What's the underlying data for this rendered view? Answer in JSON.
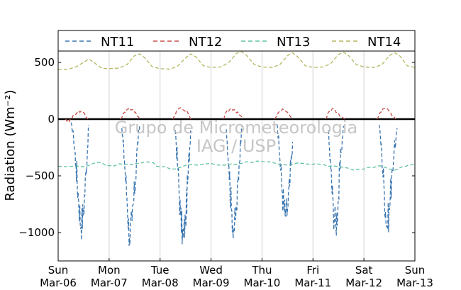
{
  "chart_data": {
    "type": "line",
    "title": "",
    "xlabel": "",
    "ylabel": "Radiation (Wm⁻²)",
    "ylim": [
      -1250,
      600
    ],
    "xlim": [
      0,
      7
    ],
    "yticks": [
      500,
      0,
      -500,
      -1000
    ],
    "ytick_labels": [
      "500",
      "0",
      "−500",
      "−1000"
    ],
    "xticks": [
      {
        "x": 0,
        "day": "Sun",
        "date": "Mar-06"
      },
      {
        "x": 1,
        "day": "Mon",
        "date": "Mar-07"
      },
      {
        "x": 2,
        "day": "Tue",
        "date": "Mar-08"
      },
      {
        "x": 3,
        "day": "Wed",
        "date": "Mar-09"
      },
      {
        "x": 4,
        "day": "Thu",
        "date": "Mar-10"
      },
      {
        "x": 5,
        "day": "Fri",
        "date": "Mar-11"
      },
      {
        "x": 6,
        "day": "Sat",
        "date": "Mar-12"
      },
      {
        "x": 7,
        "day": "Sun",
        "date": "Mar-13"
      }
    ],
    "grid": "vertical",
    "legend_position": "top",
    "watermark": [
      "Grupo de Micrometeorologia",
      "IAG / USP"
    ],
    "series": [
      {
        "name": "NT11",
        "color": "#3a75b0",
        "points": [
          [
            0.25,
            -30
          ],
          [
            0.3,
            -150
          ],
          [
            0.35,
            -400
          ],
          [
            0.4,
            -700
          ],
          [
            0.45,
            -950
          ],
          [
            0.5,
            -800
          ],
          [
            0.55,
            -450
          ],
          [
            0.6,
            -50
          ],
          [
            1.25,
            -80
          ],
          [
            1.3,
            -350
          ],
          [
            1.35,
            -700
          ],
          [
            1.4,
            -1050
          ],
          [
            1.45,
            -900
          ],
          [
            1.5,
            -650
          ],
          [
            1.55,
            -250
          ],
          [
            1.6,
            -50
          ],
          [
            2.3,
            -100
          ],
          [
            2.35,
            -450
          ],
          [
            2.4,
            -850
          ],
          [
            2.45,
            -1050
          ],
          [
            2.5,
            -900
          ],
          [
            2.55,
            -500
          ],
          [
            2.6,
            -100
          ],
          [
            3.3,
            -90
          ],
          [
            3.35,
            -400
          ],
          [
            3.4,
            -800
          ],
          [
            3.45,
            -980
          ],
          [
            3.5,
            -800
          ],
          [
            3.55,
            -400
          ],
          [
            3.6,
            -60
          ],
          [
            4.3,
            -50
          ],
          [
            4.35,
            -350
          ],
          [
            4.4,
            -650
          ],
          [
            4.45,
            -850
          ],
          [
            4.5,
            -800
          ],
          [
            4.55,
            -550
          ],
          [
            4.6,
            -200
          ],
          [
            5.3,
            -100
          ],
          [
            5.35,
            -450
          ],
          [
            5.4,
            -800
          ],
          [
            5.45,
            -950
          ],
          [
            5.5,
            -700
          ],
          [
            5.55,
            -300
          ],
          [
            5.6,
            -60
          ],
          [
            6.3,
            -50
          ],
          [
            6.35,
            -300
          ],
          [
            6.4,
            -650
          ],
          [
            6.45,
            -950
          ],
          [
            6.5,
            -800
          ],
          [
            6.55,
            -450
          ],
          [
            6.65,
            -80
          ]
        ]
      },
      {
        "name": "NT12",
        "color": "#c8504a",
        "points": [
          [
            0.15,
            0
          ],
          [
            0.22,
            -20
          ],
          [
            0.3,
            40
          ],
          [
            0.38,
            65
          ],
          [
            0.45,
            70
          ],
          [
            0.52,
            45
          ],
          [
            0.58,
            0
          ],
          [
            1.22,
            0
          ],
          [
            1.3,
            60
          ],
          [
            1.38,
            90
          ],
          [
            1.45,
            85
          ],
          [
            1.52,
            60
          ],
          [
            1.6,
            0
          ],
          [
            2.25,
            0
          ],
          [
            2.32,
            70
          ],
          [
            2.4,
            100
          ],
          [
            2.48,
            75
          ],
          [
            2.55,
            50
          ],
          [
            2.62,
            0
          ],
          [
            3.25,
            0
          ],
          [
            3.32,
            80
          ],
          [
            3.4,
            95
          ],
          [
            3.48,
            70
          ],
          [
            3.55,
            40
          ],
          [
            3.62,
            0
          ],
          [
            4.25,
            0
          ],
          [
            4.32,
            60
          ],
          [
            4.4,
            90
          ],
          [
            4.5,
            60
          ],
          [
            4.6,
            0
          ],
          [
            5.25,
            0
          ],
          [
            5.32,
            70
          ],
          [
            5.4,
            95
          ],
          [
            5.48,
            60
          ],
          [
            5.55,
            20
          ],
          [
            5.62,
            0
          ],
          [
            6.25,
            0
          ],
          [
            6.32,
            60
          ],
          [
            6.4,
            95
          ],
          [
            6.48,
            80
          ],
          [
            6.55,
            30
          ],
          [
            6.62,
            0
          ]
        ]
      },
      {
        "name": "NT13",
        "color": "#5ec2a0",
        "points": [
          [
            0,
            -415
          ],
          [
            0.5,
            -420
          ],
          [
            0.8,
            -380
          ],
          [
            1.0,
            -410
          ],
          [
            1.3,
            -400
          ],
          [
            1.5,
            -390
          ],
          [
            1.8,
            -380
          ],
          [
            2.0,
            -420
          ],
          [
            2.3,
            -440
          ],
          [
            2.6,
            -400
          ],
          [
            3.0,
            -390
          ],
          [
            3.3,
            -405
          ],
          [
            3.6,
            -390
          ],
          [
            3.9,
            -370
          ],
          [
            4.2,
            -380
          ],
          [
            4.5,
            -405
          ],
          [
            4.8,
            -390
          ],
          [
            5.2,
            -400
          ],
          [
            5.5,
            -420
          ],
          [
            5.8,
            -450
          ],
          [
            6.0,
            -440
          ],
          [
            6.3,
            -410
          ],
          [
            6.6,
            -450
          ],
          [
            6.8,
            -420
          ],
          [
            7.0,
            -400
          ]
        ]
      },
      {
        "name": "NT14",
        "color": "#b5b660",
        "points": [
          [
            0,
            435
          ],
          [
            0.2,
            440
          ],
          [
            0.35,
            460
          ],
          [
            0.5,
            500
          ],
          [
            0.6,
            530
          ],
          [
            0.7,
            500
          ],
          [
            0.85,
            450
          ],
          [
            1.0,
            445
          ],
          [
            1.2,
            450
          ],
          [
            1.35,
            480
          ],
          [
            1.5,
            560
          ],
          [
            1.6,
            575
          ],
          [
            1.7,
            540
          ],
          [
            1.85,
            460
          ],
          [
            2.0,
            445
          ],
          [
            2.2,
            440
          ],
          [
            2.35,
            470
          ],
          [
            2.5,
            540
          ],
          [
            2.6,
            575
          ],
          [
            2.7,
            550
          ],
          [
            2.85,
            470
          ],
          [
            3.0,
            455
          ],
          [
            3.2,
            460
          ],
          [
            3.35,
            500
          ],
          [
            3.5,
            580
          ],
          [
            3.6,
            595
          ],
          [
            3.7,
            560
          ],
          [
            3.85,
            480
          ],
          [
            4.0,
            460
          ],
          [
            4.2,
            455
          ],
          [
            4.35,
            480
          ],
          [
            4.5,
            560
          ],
          [
            4.6,
            585
          ],
          [
            4.7,
            550
          ],
          [
            4.85,
            470
          ],
          [
            5.0,
            455
          ],
          [
            5.2,
            460
          ],
          [
            5.35,
            490
          ],
          [
            5.5,
            570
          ],
          [
            5.6,
            590
          ],
          [
            5.7,
            560
          ],
          [
            5.85,
            480
          ],
          [
            6.0,
            460
          ],
          [
            6.2,
            455
          ],
          [
            6.35,
            480
          ],
          [
            6.5,
            560
          ],
          [
            6.6,
            585
          ],
          [
            6.7,
            560
          ],
          [
            6.85,
            470
          ],
          [
            7.0,
            455
          ]
        ]
      }
    ]
  }
}
